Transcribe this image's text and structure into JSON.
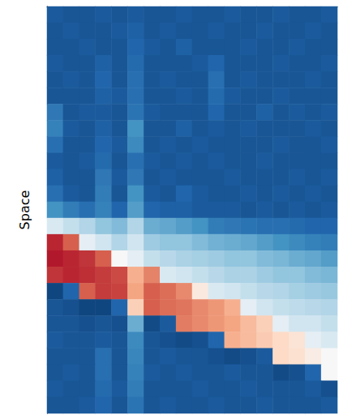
{
  "chart_data": {
    "type": "heatmap",
    "ylabel": "Space",
    "tick_labels": false,
    "color": "RdBu_r",
    "color_range": [
      0,
      1
    ],
    "cells": [
      [
        0.08,
        0.07,
        0.07,
        0.08,
        0.07,
        0.08,
        0.07,
        0.07,
        0.08,
        0.07,
        0.07,
        0.08,
        0.07,
        0.07,
        0.08,
        0.07,
        0.07,
        0.08
      ],
      [
        0.07,
        0.08,
        0.07,
        0.07,
        0.08,
        0.09,
        0.07,
        0.08,
        0.07,
        0.07,
        0.08,
        0.07,
        0.07,
        0.08,
        0.07,
        0.07,
        0.08,
        0.07
      ],
      [
        0.07,
        0.07,
        0.08,
        0.07,
        0.07,
        0.1,
        0.08,
        0.07,
        0.09,
        0.07,
        0.07,
        0.07,
        0.08,
        0.07,
        0.07,
        0.08,
        0.07,
        0.07
      ],
      [
        0.08,
        0.07,
        0.07,
        0.09,
        0.07,
        0.11,
        0.07,
        0.07,
        0.07,
        0.08,
        0.1,
        0.07,
        0.07,
        0.07,
        0.08,
        0.07,
        0.07,
        0.08
      ],
      [
        0.07,
        0.08,
        0.07,
        0.1,
        0.07,
        0.12,
        0.07,
        0.08,
        0.07,
        0.07,
        0.12,
        0.07,
        0.08,
        0.07,
        0.07,
        0.07,
        0.08,
        0.07
      ],
      [
        0.07,
        0.07,
        0.07,
        0.09,
        0.08,
        0.12,
        0.07,
        0.07,
        0.08,
        0.07,
        0.11,
        0.08,
        0.07,
        0.07,
        0.08,
        0.07,
        0.07,
        0.07
      ],
      [
        0.14,
        0.07,
        0.08,
        0.08,
        0.07,
        0.13,
        0.08,
        0.07,
        0.07,
        0.07,
        0.1,
        0.07,
        0.07,
        0.09,
        0.07,
        0.08,
        0.07,
        0.08
      ],
      [
        0.16,
        0.08,
        0.07,
        0.09,
        0.07,
        0.2,
        0.07,
        0.07,
        0.09,
        0.07,
        0.08,
        0.07,
        0.08,
        0.07,
        0.07,
        0.07,
        0.08,
        0.07
      ],
      [
        0.12,
        0.07,
        0.07,
        0.1,
        0.08,
        0.18,
        0.07,
        0.08,
        0.07,
        0.08,
        0.07,
        0.07,
        0.07,
        0.07,
        0.08,
        0.07,
        0.07,
        0.08
      ],
      [
        0.08,
        0.07,
        0.08,
        0.11,
        0.07,
        0.12,
        0.08,
        0.07,
        0.08,
        0.07,
        0.08,
        0.07,
        0.07,
        0.08,
        0.07,
        0.07,
        0.07,
        0.07
      ],
      [
        0.09,
        0.07,
        0.07,
        0.14,
        0.08,
        0.14,
        0.07,
        0.08,
        0.07,
        0.07,
        0.07,
        0.08,
        0.07,
        0.07,
        0.07,
        0.08,
        0.07,
        0.08
      ],
      [
        0.12,
        0.08,
        0.07,
        0.15,
        0.07,
        0.2,
        0.08,
        0.07,
        0.1,
        0.08,
        0.07,
        0.07,
        0.08,
        0.07,
        0.08,
        0.07,
        0.08,
        0.07
      ],
      [
        0.2,
        0.15,
        0.12,
        0.16,
        0.1,
        0.22,
        0.1,
        0.09,
        0.09,
        0.08,
        0.08,
        0.08,
        0.07,
        0.08,
        0.07,
        0.08,
        0.07,
        0.08
      ],
      [
        0.42,
        0.38,
        0.35,
        0.3,
        0.28,
        0.35,
        0.25,
        0.24,
        0.22,
        0.2,
        0.15,
        0.14,
        0.13,
        0.12,
        0.12,
        0.11,
        0.1,
        0.1
      ],
      [
        0.88,
        0.8,
        0.45,
        0.4,
        0.35,
        0.4,
        0.32,
        0.3,
        0.3,
        0.28,
        0.26,
        0.25,
        0.24,
        0.22,
        0.2,
        0.18,
        0.16,
        0.15
      ],
      [
        0.9,
        0.88,
        0.86,
        0.8,
        0.5,
        0.45,
        0.38,
        0.36,
        0.34,
        0.33,
        0.32,
        0.3,
        0.3,
        0.28,
        0.27,
        0.25,
        0.24,
        0.22
      ],
      [
        0.86,
        0.88,
        0.87,
        0.85,
        0.83,
        0.68,
        0.75,
        0.42,
        0.4,
        0.38,
        0.36,
        0.34,
        0.34,
        0.32,
        0.3,
        0.3,
        0.28,
        0.27
      ],
      [
        0.04,
        0.1,
        0.8,
        0.85,
        0.84,
        0.7,
        0.8,
        0.78,
        0.74,
        0.55,
        0.42,
        0.4,
        0.38,
        0.36,
        0.35,
        0.33,
        0.32,
        0.31
      ],
      [
        0.07,
        0.06,
        0.04,
        0.04,
        0.1,
        0.62,
        0.8,
        0.78,
        0.77,
        0.74,
        0.72,
        0.68,
        0.45,
        0.4,
        0.38,
        0.37,
        0.36,
        0.35
      ],
      [
        0.07,
        0.07,
        0.06,
        0.07,
        0.06,
        0.25,
        0.05,
        0.08,
        0.76,
        0.74,
        0.72,
        0.7,
        0.66,
        0.62,
        0.45,
        0.4,
        0.4,
        0.38
      ],
      [
        0.08,
        0.07,
        0.07,
        0.08,
        0.07,
        0.18,
        0.07,
        0.06,
        0.05,
        0.06,
        0.1,
        0.68,
        0.66,
        0.63,
        0.6,
        0.57,
        0.45,
        0.42
      ],
      [
        0.07,
        0.07,
        0.07,
        0.12,
        0.07,
        0.17,
        0.07,
        0.08,
        0.07,
        0.07,
        0.06,
        0.05,
        0.06,
        0.08,
        0.6,
        0.58,
        0.54,
        0.5
      ],
      [
        0.07,
        0.08,
        0.07,
        0.12,
        0.07,
        0.16,
        0.08,
        0.07,
        0.08,
        0.07,
        0.07,
        0.08,
        0.07,
        0.07,
        0.05,
        0.06,
        0.1,
        0.5
      ],
      [
        0.08,
        0.07,
        0.07,
        0.11,
        0.08,
        0.15,
        0.07,
        0.07,
        0.07,
        0.08,
        0.07,
        0.07,
        0.08,
        0.07,
        0.07,
        0.07,
        0.08,
        0.06
      ],
      [
        0.07,
        0.07,
        0.08,
        0.1,
        0.07,
        0.13,
        0.07,
        0.08,
        0.07,
        0.07,
        0.08,
        0.07,
        0.07,
        0.08,
        0.07,
        0.07,
        0.07,
        0.08
      ]
    ]
  }
}
